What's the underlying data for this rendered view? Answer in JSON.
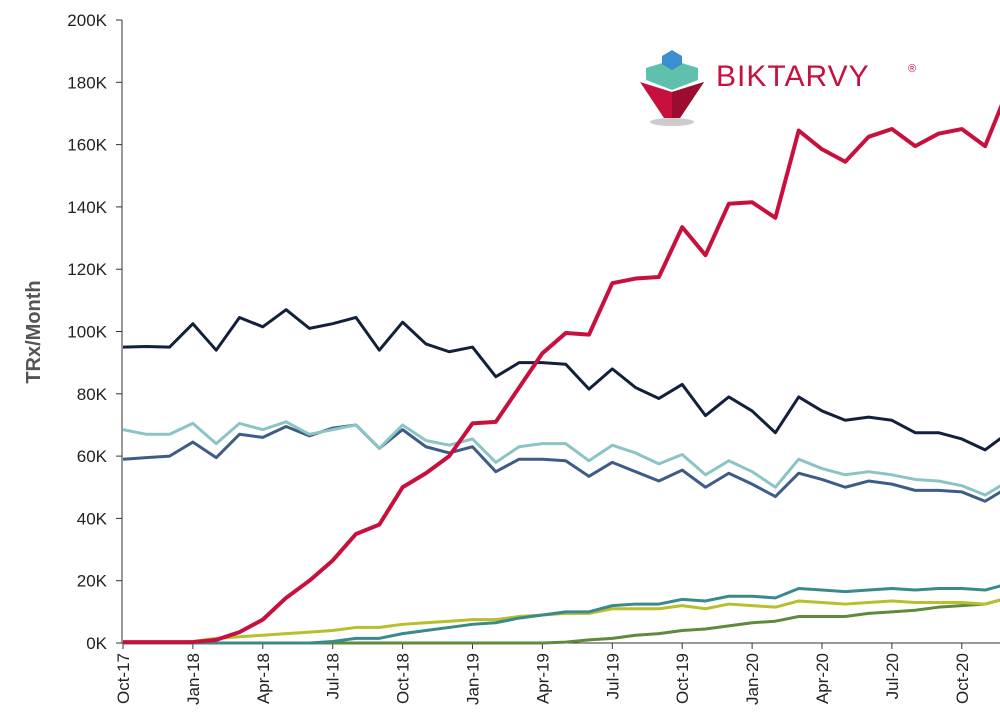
{
  "chart_data": {
    "type": "line",
    "y_label": "TRx/Month",
    "logo_text": "BIKTARVY",
    "logo_mark": "®",
    "categories": [
      "Oct-17",
      null,
      null,
      "Jan-18",
      null,
      null,
      "Apr-18",
      null,
      null,
      "Jul-18",
      null,
      null,
      "Oct-18",
      null,
      null,
      "Jan-19",
      null,
      null,
      "Apr-19",
      null,
      null,
      "Jul-19",
      null,
      null,
      "Oct-19",
      null,
      null,
      "Jan-20",
      null,
      null,
      "Apr-20",
      null,
      null,
      "Jul-20",
      null,
      null,
      "Oct-20",
      null,
      null
    ],
    "ylim": [
      0,
      200000
    ],
    "yticks": [
      {
        "value": 0,
        "label": "0K"
      },
      {
        "value": 20000,
        "label": "20K"
      },
      {
        "value": 40000,
        "label": "40K"
      },
      {
        "value": 60000,
        "label": "60K"
      },
      {
        "value": 80000,
        "label": "80K"
      },
      {
        "value": 100000,
        "label": "100K"
      },
      {
        "value": 120000,
        "label": "120K"
      },
      {
        "value": 140000,
        "label": "140K"
      },
      {
        "value": 160000,
        "label": "160K"
      },
      {
        "value": 180000,
        "label": "180K"
      },
      {
        "value": 200000,
        "label": "200K"
      }
    ],
    "series": [
      {
        "color": "#5e8a3c",
        "values": [
          0,
          0,
          0,
          0,
          0,
          0,
          0,
          0,
          0,
          0,
          0,
          0,
          0,
          0,
          0,
          0,
          0,
          0,
          0,
          300,
          1000,
          1500,
          2500,
          3000,
          4000,
          4500,
          5500,
          6500,
          7000,
          8500,
          8500,
          8500,
          9500,
          10000,
          10500,
          11500,
          12000,
          12500,
          14500
        ]
      },
      {
        "color": "#b7bf2a",
        "values": [
          0,
          0,
          0,
          500,
          1500,
          2000,
          2500,
          3000,
          3500,
          4000,
          5000,
          5000,
          6000,
          6500,
          7000,
          7500,
          7500,
          8500,
          9000,
          9500,
          9500,
          11000,
          11000,
          11000,
          12000,
          11000,
          12500,
          12000,
          11500,
          13500,
          13000,
          12500,
          13000,
          13500,
          13000,
          13000,
          13000,
          12500,
          14500
        ]
      },
      {
        "color": "#3a8a8c",
        "values": [
          0,
          0,
          0,
          0,
          0,
          0,
          0,
          0,
          0,
          500,
          1500,
          1500,
          3000,
          4000,
          5000,
          6000,
          6500,
          8000,
          9000,
          10000,
          10000,
          12000,
          12500,
          12500,
          14000,
          13500,
          15000,
          15000,
          14500,
          17500,
          17000,
          16500,
          17000,
          17500,
          17000,
          17500,
          17500,
          17000,
          19000
        ]
      },
      {
        "color": "#3d5c87",
        "values": [
          59000,
          59500,
          60000,
          64500,
          59500,
          67000,
          66000,
          69500,
          66500,
          69000,
          70000,
          62500,
          68500,
          63000,
          61000,
          63000,
          55000,
          59000,
          59000,
          58500,
          53500,
          58000,
          55000,
          52000,
          55500,
          50000,
          54500,
          51000,
          47000,
          54500,
          52500,
          50000,
          52000,
          51000,
          49000,
          49000,
          48500,
          45500,
          50000
        ]
      },
      {
        "color": "#8cc4c6",
        "values": [
          68500,
          67000,
          67000,
          70500,
          64000,
          70500,
          68500,
          71000,
          67000,
          68500,
          70000,
          62500,
          70000,
          65000,
          63500,
          65500,
          58000,
          63000,
          64000,
          64000,
          58500,
          63500,
          61000,
          57500,
          60500,
          54000,
          58500,
          55000,
          50000,
          59000,
          56000,
          54000,
          55000,
          54000,
          52500,
          52000,
          50500,
          47500,
          52000
        ]
      },
      {
        "color": "#13203b",
        "values": [
          95000,
          95200,
          95000,
          102500,
          94000,
          104500,
          101500,
          107000,
          101000,
          102500,
          104500,
          94000,
          103000,
          96000,
          93500,
          95000,
          85500,
          90000,
          90000,
          89500,
          81500,
          88000,
          82000,
          78500,
          83000,
          73000,
          79000,
          74500,
          67500,
          79000,
          74500,
          71500,
          72500,
          71500,
          67500,
          67500,
          65500,
          62000,
          67500
        ]
      },
      {
        "color": "#c8103e",
        "values": [
          300,
          300,
          300,
          300,
          1000,
          3500,
          7500,
          14500,
          20000,
          26500,
          35000,
          38000,
          50000,
          54500,
          60000,
          70500,
          71000,
          82000,
          93000,
          99500,
          99000,
          115500,
          117000,
          117500,
          133500,
          124500,
          141000,
          141500,
          136500,
          164500,
          158500,
          154500,
          162500,
          165000,
          159500,
          163500,
          165000,
          159500,
          178000
        ]
      }
    ]
  }
}
